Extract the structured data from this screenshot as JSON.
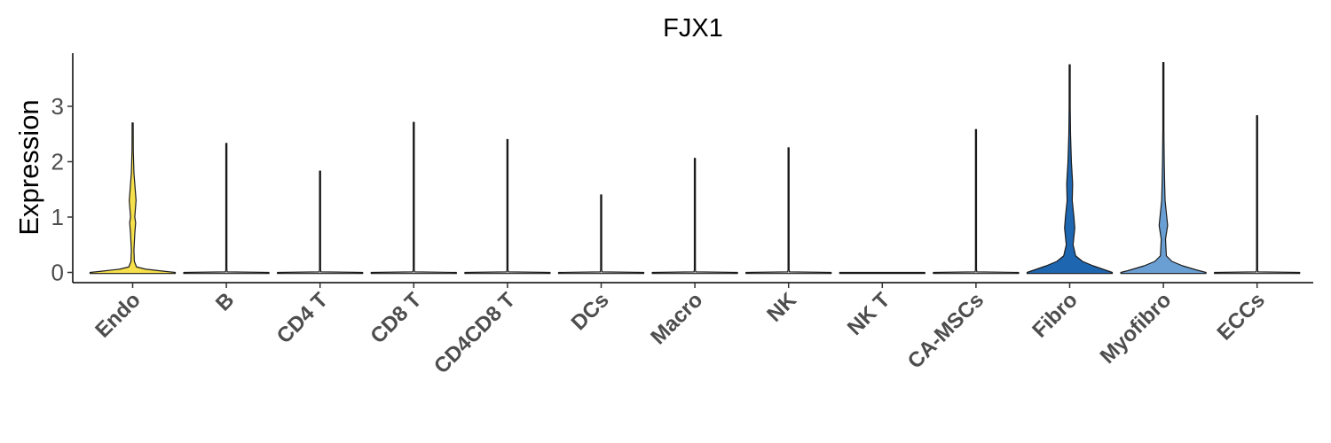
{
  "chart_data": {
    "type": "violin",
    "title": "FJX1",
    "ylabel": "Expression",
    "xlabel": "",
    "ylim": [
      -0.2,
      3.9
    ],
    "yticks": [
      0,
      1,
      2,
      3
    ],
    "grid": false,
    "legend": "none",
    "categories": [
      "Endo",
      "B",
      "CD4 T",
      "CD8 T",
      "CD4CD8 T",
      "DCs",
      "Macro",
      "NK",
      "NK T",
      "CA-MSCs",
      "Fibro",
      "Myofibro",
      "ECCs"
    ],
    "max_values": [
      2.7,
      2.33,
      1.83,
      2.71,
      2.4,
      1.4,
      2.06,
      2.25,
      0.0,
      2.58,
      3.75,
      3.79,
      2.83
    ],
    "fill_colors": [
      "#f6e04b",
      "#e8e8e8",
      "#e8e8e8",
      "#e8e8e8",
      "#e8e8e8",
      "#e8e8e8",
      "#e8e8e8",
      "#e8e8e8",
      "#e8e8e8",
      "#e8e8e8",
      "#1f66b0",
      "#6a9fd4",
      "#e8e8e8"
    ]
  }
}
